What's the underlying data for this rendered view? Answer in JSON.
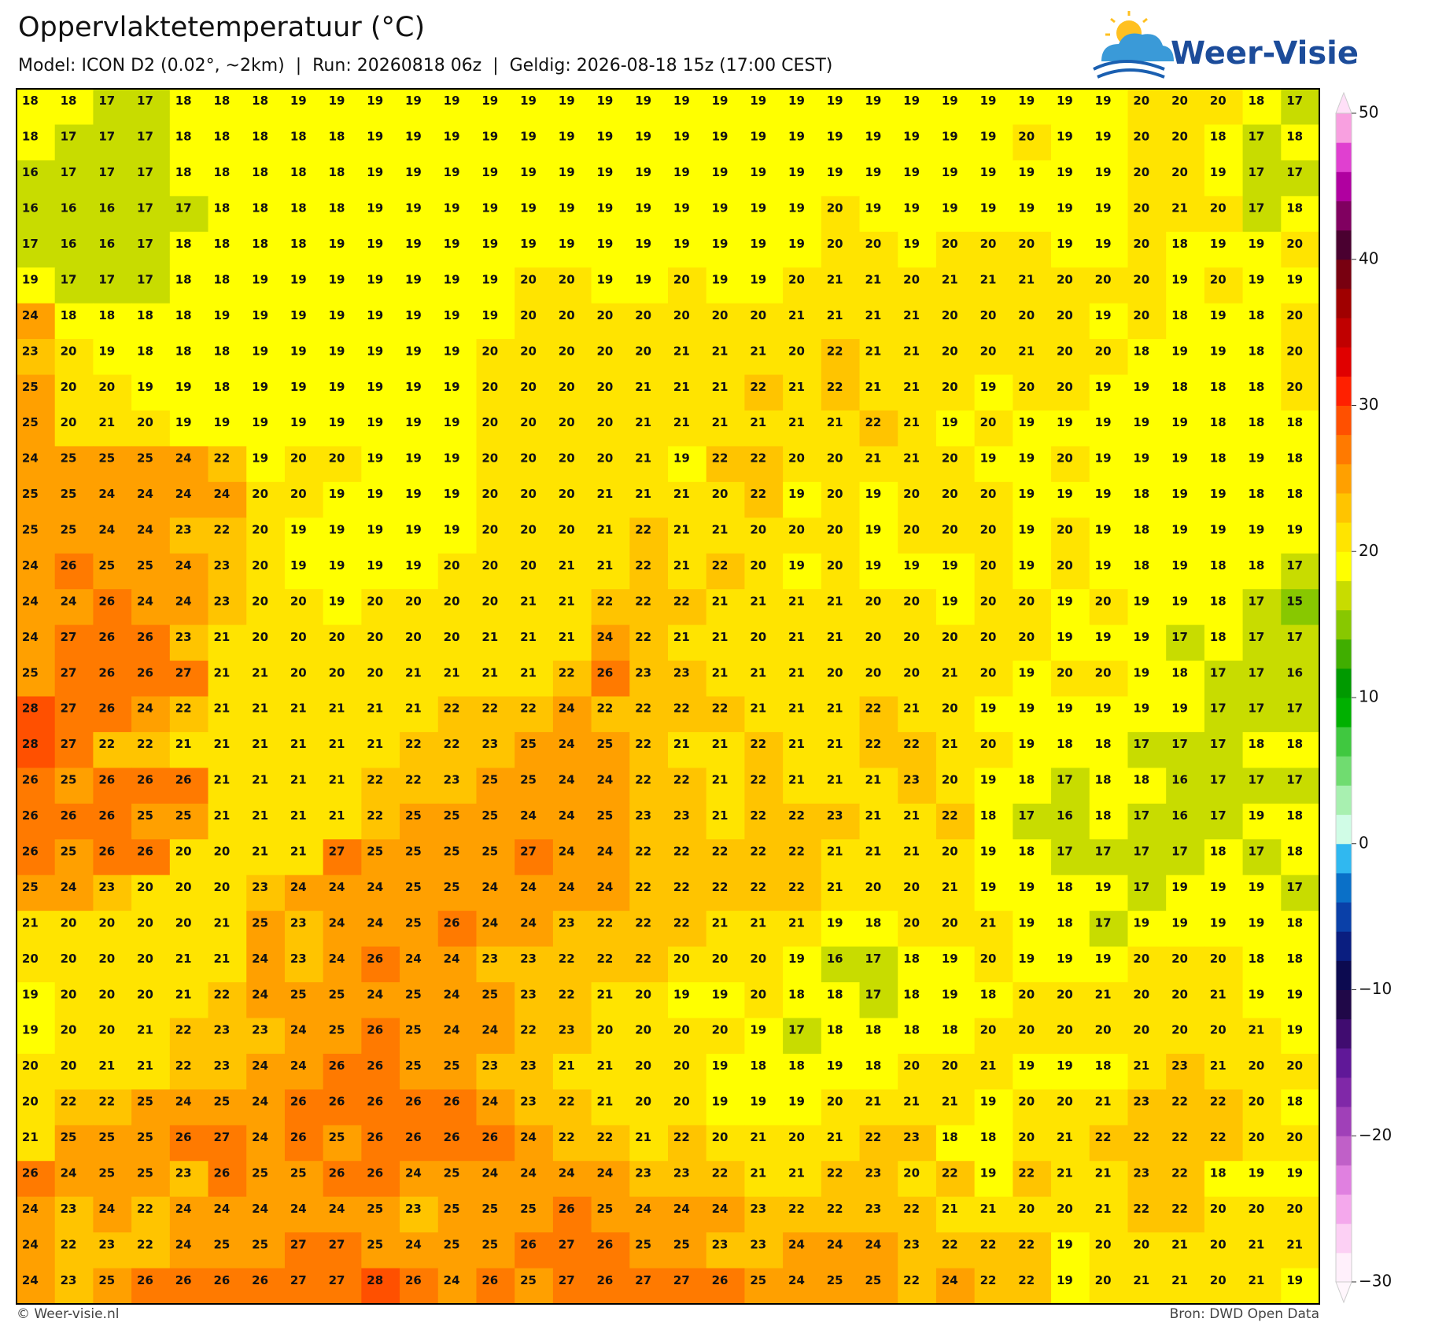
{
  "header": {
    "title": "Oppervlaktetemperatuur (°C)",
    "subtitle": "Model: ICON D2 (0.02°, ~2km)  |  Run: 20260818 06z  |  Geldig: 2026-08-18 15z (17:00 CEST)",
    "logo": "Weer-Visie"
  },
  "map": {
    "type": "grid",
    "rows": [
      [
        18,
        18,
        17,
        17,
        18,
        18,
        18,
        19,
        19,
        19,
        19,
        19,
        19,
        19,
        19,
        19,
        19,
        19,
        19,
        19,
        19,
        19,
        19,
        19,
        19,
        19,
        19,
        19,
        19,
        20,
        20,
        20,
        18,
        17
      ],
      [
        18,
        17,
        17,
        17,
        18,
        18,
        18,
        18,
        18,
        19,
        19,
        19,
        19,
        19,
        19,
        19,
        19,
        19,
        19,
        19,
        19,
        19,
        19,
        19,
        19,
        19,
        20,
        19,
        19,
        20,
        20,
        18,
        17,
        18
      ],
      [
        16,
        17,
        17,
        17,
        18,
        18,
        18,
        18,
        18,
        19,
        19,
        19,
        19,
        19,
        19,
        19,
        19,
        19,
        19,
        19,
        19,
        19,
        19,
        19,
        19,
        19,
        19,
        19,
        19,
        20,
        20,
        19,
        17,
        17
      ],
      [
        16,
        16,
        16,
        17,
        17,
        18,
        18,
        18,
        18,
        19,
        19,
        19,
        19,
        19,
        19,
        19,
        19,
        19,
        19,
        19,
        19,
        20,
        19,
        19,
        19,
        19,
        19,
        19,
        19,
        20,
        21,
        20,
        17,
        18
      ],
      [
        17,
        16,
        16,
        17,
        18,
        18,
        18,
        18,
        19,
        19,
        19,
        19,
        19,
        19,
        19,
        19,
        19,
        19,
        19,
        19,
        19,
        20,
        20,
        19,
        20,
        20,
        20,
        19,
        19,
        20,
        18,
        19,
        19,
        20
      ],
      [
        19,
        17,
        17,
        17,
        18,
        18,
        19,
        19,
        19,
        19,
        19,
        19,
        19,
        20,
        20,
        19,
        19,
        20,
        19,
        19,
        20,
        21,
        21,
        20,
        21,
        21,
        21,
        20,
        20,
        20,
        19,
        20,
        19,
        19
      ],
      [
        24,
        18,
        18,
        18,
        18,
        19,
        19,
        19,
        19,
        19,
        19,
        19,
        19,
        20,
        20,
        20,
        20,
        20,
        20,
        20,
        21,
        21,
        21,
        21,
        20,
        20,
        20,
        20,
        19,
        20,
        18,
        19,
        18,
        20
      ],
      [
        23,
        20,
        19,
        18,
        18,
        18,
        19,
        19,
        19,
        19,
        19,
        19,
        20,
        20,
        20,
        20,
        20,
        21,
        21,
        21,
        20,
        22,
        21,
        21,
        20,
        20,
        21,
        20,
        20,
        18,
        19,
        19,
        18,
        20
      ],
      [
        25,
        20,
        20,
        19,
        19,
        18,
        19,
        19,
        19,
        19,
        19,
        19,
        20,
        20,
        20,
        20,
        21,
        21,
        21,
        22,
        21,
        22,
        21,
        21,
        20,
        19,
        20,
        20,
        19,
        19,
        18,
        18,
        18,
        20
      ],
      [
        25,
        20,
        21,
        20,
        19,
        19,
        19,
        19,
        19,
        19,
        19,
        19,
        20,
        20,
        20,
        20,
        21,
        21,
        21,
        21,
        21,
        21,
        22,
        21,
        19,
        20,
        19,
        19,
        19,
        19,
        19,
        18,
        18,
        18
      ],
      [
        24,
        25,
        25,
        25,
        24,
        22,
        19,
        20,
        20,
        19,
        19,
        19,
        20,
        20,
        20,
        20,
        21,
        19,
        22,
        22,
        20,
        20,
        21,
        21,
        20,
        19,
        19,
        20,
        19,
        19,
        19,
        18,
        19,
        18
      ],
      [
        25,
        25,
        24,
        24,
        24,
        24,
        20,
        20,
        19,
        19,
        19,
        19,
        20,
        20,
        20,
        21,
        21,
        21,
        20,
        22,
        19,
        20,
        19,
        20,
        20,
        20,
        19,
        19,
        19,
        18,
        19,
        19,
        18,
        18
      ],
      [
        25,
        25,
        24,
        24,
        23,
        22,
        20,
        19,
        19,
        19,
        19,
        19,
        20,
        20,
        20,
        21,
        22,
        21,
        21,
        20,
        20,
        20,
        19,
        20,
        20,
        20,
        19,
        20,
        19,
        18,
        19,
        19,
        19,
        19
      ],
      [
        24,
        26,
        25,
        25,
        24,
        23,
        20,
        19,
        19,
        19,
        19,
        20,
        20,
        20,
        21,
        21,
        22,
        21,
        22,
        20,
        19,
        20,
        19,
        19,
        19,
        20,
        19,
        20,
        19,
        18,
        19,
        18,
        18,
        17
      ],
      [
        24,
        24,
        26,
        24,
        24,
        23,
        20,
        20,
        19,
        20,
        20,
        20,
        20,
        21,
        21,
        22,
        22,
        22,
        21,
        21,
        21,
        21,
        20,
        20,
        19,
        20,
        20,
        19,
        20,
        19,
        19,
        18,
        17,
        15
      ],
      [
        24,
        27,
        26,
        26,
        23,
        21,
        20,
        20,
        20,
        20,
        20,
        20,
        21,
        21,
        21,
        24,
        22,
        21,
        21,
        20,
        21,
        21,
        20,
        20,
        20,
        20,
        20,
        19,
        19,
        19,
        17,
        18,
        17,
        17
      ],
      [
        25,
        27,
        26,
        26,
        27,
        21,
        21,
        20,
        20,
        20,
        21,
        21,
        21,
        21,
        22,
        26,
        23,
        23,
        21,
        21,
        21,
        20,
        20,
        20,
        21,
        20,
        19,
        20,
        20,
        19,
        18,
        17,
        17,
        16
      ],
      [
        28,
        27,
        26,
        24,
        22,
        21,
        21,
        21,
        21,
        21,
        21,
        22,
        22,
        22,
        24,
        22,
        22,
        22,
        22,
        21,
        21,
        21,
        22,
        21,
        20,
        19,
        19,
        19,
        19,
        19,
        19,
        17,
        17,
        17
      ],
      [
        28,
        27,
        22,
        22,
        21,
        21,
        21,
        21,
        21,
        21,
        22,
        22,
        23,
        25,
        24,
        25,
        22,
        21,
        21,
        22,
        21,
        21,
        22,
        22,
        21,
        20,
        19,
        18,
        18,
        17,
        17,
        17,
        18,
        18
      ],
      [
        26,
        25,
        26,
        26,
        26,
        21,
        21,
        21,
        21,
        22,
        22,
        23,
        25,
        25,
        24,
        24,
        22,
        22,
        21,
        22,
        21,
        21,
        21,
        23,
        20,
        19,
        18,
        17,
        18,
        18,
        16,
        17,
        17,
        17
      ],
      [
        26,
        26,
        26,
        25,
        25,
        21,
        21,
        21,
        21,
        22,
        25,
        25,
        25,
        24,
        24,
        25,
        23,
        23,
        21,
        22,
        22,
        23,
        21,
        21,
        22,
        18,
        17,
        16,
        18,
        17,
        16,
        17,
        19,
        18
      ],
      [
        26,
        25,
        26,
        26,
        20,
        20,
        21,
        21,
        27,
        25,
        25,
        25,
        25,
        27,
        24,
        24,
        22,
        22,
        22,
        22,
        22,
        21,
        21,
        21,
        20,
        19,
        18,
        17,
        17,
        17,
        17,
        18,
        17,
        18
      ],
      [
        25,
        24,
        23,
        20,
        20,
        20,
        23,
        24,
        24,
        24,
        25,
        25,
        24,
        24,
        24,
        24,
        22,
        22,
        22,
        22,
        22,
        21,
        20,
        20,
        21,
        19,
        19,
        18,
        19,
        17,
        19,
        19,
        19,
        17
      ],
      [
        21,
        20,
        20,
        20,
        20,
        21,
        25,
        23,
        24,
        24,
        25,
        26,
        24,
        24,
        23,
        22,
        22,
        22,
        21,
        21,
        21,
        19,
        18,
        20,
        20,
        21,
        19,
        18,
        17,
        19,
        19,
        19,
        19,
        18
      ],
      [
        20,
        20,
        20,
        20,
        21,
        21,
        24,
        23,
        24,
        26,
        24,
        24,
        23,
        23,
        22,
        22,
        22,
        20,
        20,
        20,
        19,
        16,
        17,
        18,
        19,
        20,
        19,
        19,
        19,
        20,
        20,
        20,
        18,
        18
      ],
      [
        19,
        20,
        20,
        20,
        21,
        22,
        24,
        25,
        25,
        24,
        25,
        24,
        25,
        23,
        22,
        21,
        20,
        19,
        19,
        20,
        18,
        18,
        17,
        18,
        19,
        18,
        20,
        20,
        21,
        20,
        20,
        21,
        19,
        19
      ],
      [
        19,
        20,
        20,
        21,
        22,
        23,
        23,
        24,
        25,
        26,
        25,
        24,
        24,
        22,
        23,
        20,
        20,
        20,
        20,
        19,
        17,
        18,
        18,
        18,
        18,
        20,
        20,
        20,
        20,
        20,
        20,
        20,
        21,
        19
      ],
      [
        20,
        20,
        21,
        21,
        22,
        23,
        24,
        24,
        26,
        26,
        25,
        25,
        23,
        23,
        21,
        21,
        20,
        20,
        19,
        18,
        18,
        19,
        18,
        20,
        20,
        21,
        19,
        19,
        18,
        21,
        23,
        21,
        20,
        20
      ],
      [
        20,
        22,
        22,
        25,
        24,
        25,
        24,
        26,
        26,
        26,
        26,
        26,
        24,
        23,
        22,
        21,
        20,
        20,
        19,
        19,
        19,
        20,
        21,
        21,
        21,
        19,
        20,
        20,
        21,
        23,
        22,
        22,
        20,
        18
      ],
      [
        21,
        25,
        25,
        25,
        26,
        27,
        24,
        26,
        25,
        26,
        26,
        26,
        26,
        24,
        22,
        22,
        21,
        22,
        20,
        21,
        20,
        21,
        22,
        23,
        18,
        18,
        20,
        21,
        22,
        22,
        22,
        22,
        20,
        20
      ],
      [
        26,
        24,
        25,
        25,
        23,
        26,
        25,
        25,
        26,
        26,
        24,
        25,
        24,
        24,
        24,
        24,
        23,
        23,
        22,
        21,
        21,
        22,
        23,
        20,
        22,
        19,
        22,
        21,
        21,
        23,
        22,
        18,
        19,
        19
      ],
      [
        24,
        23,
        24,
        22,
        24,
        24,
        24,
        24,
        24,
        25,
        23,
        25,
        25,
        25,
        26,
        25,
        24,
        24,
        24,
        23,
        22,
        22,
        23,
        22,
        21,
        21,
        20,
        20,
        21,
        22,
        22,
        20,
        20,
        20
      ],
      [
        24,
        22,
        23,
        22,
        24,
        25,
        25,
        27,
        27,
        25,
        24,
        25,
        25,
        26,
        27,
        26,
        25,
        25,
        23,
        23,
        24,
        24,
        24,
        23,
        22,
        22,
        22,
        19,
        20,
        20,
        21,
        20,
        21,
        21
      ],
      [
        24,
        23,
        25,
        26,
        26,
        26,
        26,
        27,
        27,
        28,
        26,
        24,
        26,
        25,
        27,
        26,
        27,
        27,
        26,
        25,
        24,
        25,
        25,
        22,
        24,
        22,
        22,
        19,
        20,
        21,
        21,
        20,
        21,
        19
      ]
    ]
  },
  "colorbar": {
    "range": [
      -30,
      50
    ],
    "ticks": [
      {
        "value": -30,
        "label": "−30"
      },
      {
        "value": -20,
        "label": "−20"
      },
      {
        "value": -10,
        "label": "−10"
      },
      0,
      10,
      20,
      30,
      40,
      50
    ],
    "colors": [
      "#fff0fb",
      "#fcd0f4",
      "#f4a8ec",
      "#e080e0",
      "#c060c8",
      "#a040b8",
      "#8028a8",
      "#601898",
      "#400c70",
      "#200848",
      "#0c0a50",
      "#0a1e80",
      "#0a40a8",
      "#0a70c8",
      "#30b8f0",
      "#d0fce6",
      "#a8f0b0",
      "#70dc70",
      "#40c840",
      "#00b000",
      "#009a00",
      "#40ae00",
      "#88c800",
      "#c8dc00",
      "#ffff00",
      "#ffe400",
      "#ffc400",
      "#ffa000",
      "#ff7a00",
      "#ff5000",
      "#ff2000",
      "#e00000",
      "#c00000",
      "#a00000",
      "#780010",
      "#4a0030",
      "#800060",
      "#b000a0",
      "#e040d0",
      "#f8a0e0"
    ],
    "over": "#ffe0f8",
    "under": "#fff6fc"
  },
  "footer": {
    "credit": "© Weer-visie.nl",
    "source": "Bron: DWD Open Data"
  }
}
